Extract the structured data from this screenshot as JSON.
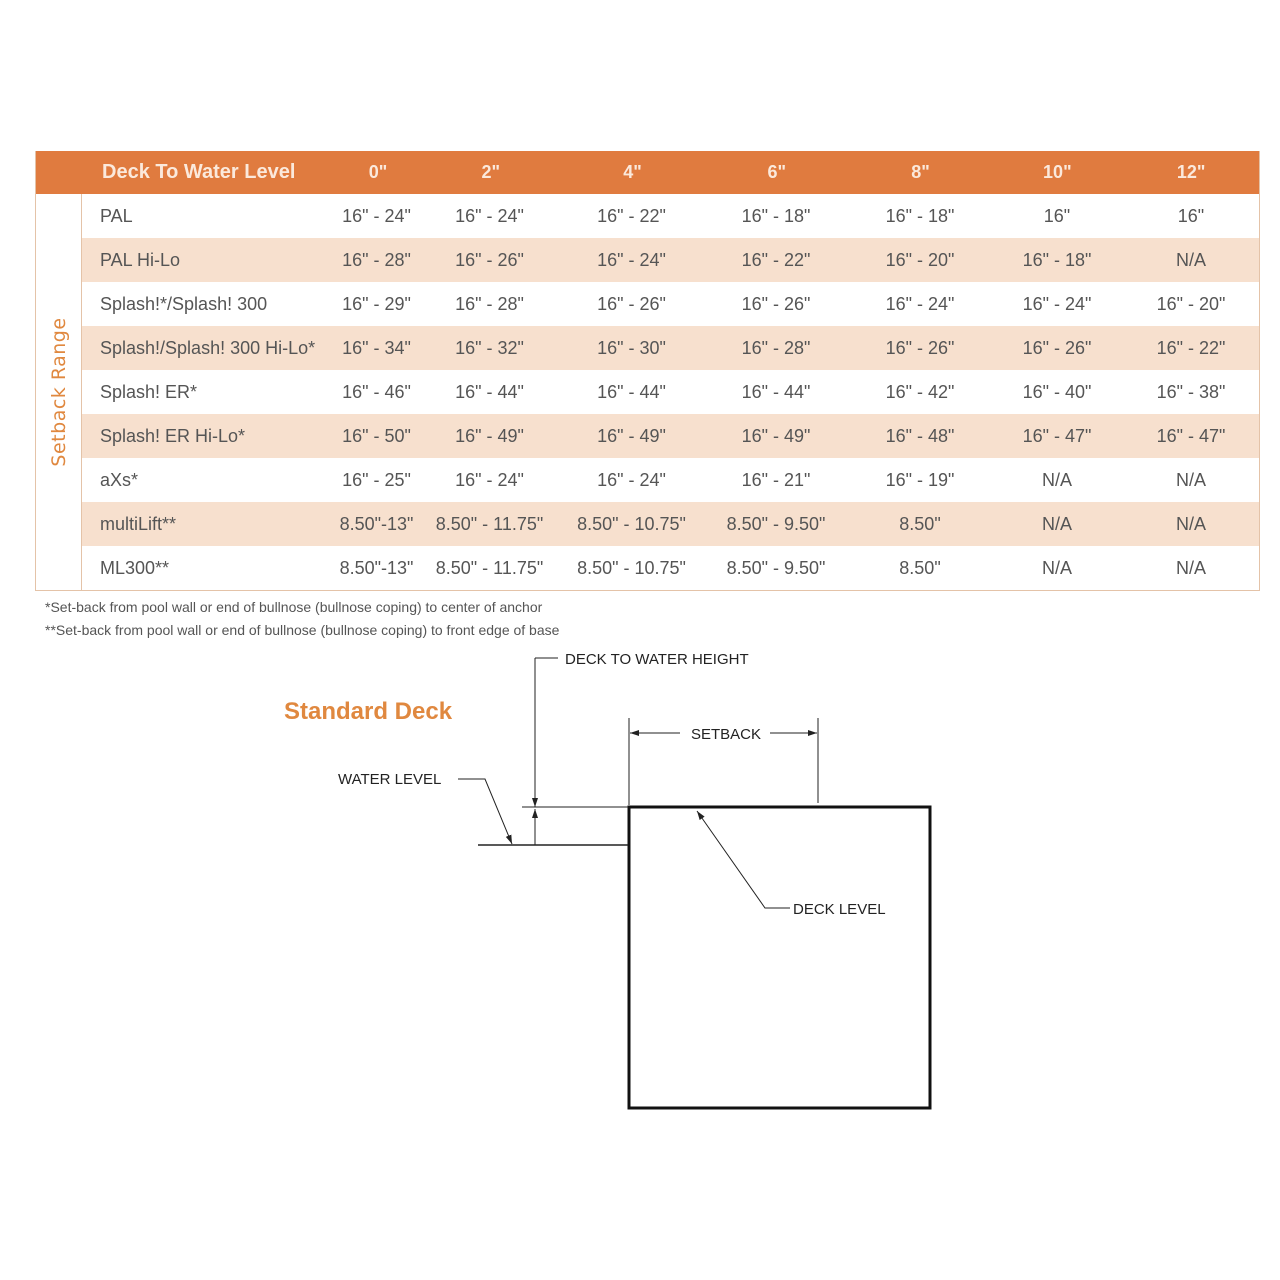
{
  "table": {
    "header_label": "Deck To Water Level",
    "side_label": "Setback Range",
    "columns": [
      "0\"",
      "2\"",
      "4\"",
      "6\"",
      "8\"",
      "10\"",
      "12\""
    ],
    "rows": [
      {
        "name": "PAL",
        "values": [
          "16\" - 24\"",
          "16\" - 24\"",
          "16\" - 22\"",
          "16\" - 18\"",
          "16\" - 18\"",
          "16\"",
          "16\""
        ]
      },
      {
        "name": "PAL Hi-Lo",
        "values": [
          "16\" - 28\"",
          "16\" - 26\"",
          "16\" - 24\"",
          "16\" - 22\"",
          "16\" - 20\"",
          "16\" - 18\"",
          "N/A"
        ]
      },
      {
        "name": "Splash!*/Splash! 300",
        "values": [
          "16\" - 29\"",
          "16\" - 28\"",
          "16\" - 26\"",
          "16\" - 26\"",
          "16\" - 24\"",
          "16\" - 24\"",
          "16\" - 20\""
        ]
      },
      {
        "name": "Splash!/Splash! 300 Hi-Lo*",
        "values": [
          "16\" - 34\"",
          "16\" - 32\"",
          "16\" - 30\"",
          "16\" - 28\"",
          "16\" - 26\"",
          "16\" - 26\"",
          "16\" - 22\""
        ]
      },
      {
        "name": "Splash! ER*",
        "values": [
          "16\" - 46\"",
          "16\" - 44\"",
          "16\" - 44\"",
          "16\" - 44\"",
          "16\" - 42\"",
          "16\" - 40\"",
          "16\" - 38\""
        ]
      },
      {
        "name": "Splash! ER Hi-Lo*",
        "values": [
          "16\" - 50\"",
          "16\" - 49\"",
          "16\" - 49\"",
          "16\" - 49\"",
          "16\" - 48\"",
          "16\" - 47\"",
          "16\" - 47\""
        ]
      },
      {
        "name": "aXs*",
        "values": [
          "16\" - 25\"",
          "16\" - 24\"",
          "16\" - 24\"",
          "16\" - 21\"",
          "16\" - 19\"",
          "N/A",
          "N/A"
        ]
      },
      {
        "name": "multiLift**",
        "values": [
          "8.50\"-13\"",
          "8.50\" - 11.75\"",
          "8.50\" - 10.75\"",
          "8.50\" - 9.50\"",
          "8.50\"",
          "N/A",
          "N/A"
        ]
      },
      {
        "name": "ML300**",
        "values": [
          "8.50\"-13\"",
          "8.50\" - 11.75\"",
          "8.50\" - 10.75\"",
          "8.50\" - 9.50\"",
          "8.50\"",
          "N/A",
          "N/A"
        ]
      }
    ]
  },
  "notes": [
    "*Set-back from pool wall or end of bullnose (bullnose coping) to center of anchor",
    "**Set-back from pool wall or end of bullnose (bullnose coping) to front edge of base"
  ],
  "diagram": {
    "title": "Standard Deck",
    "deck_to_water_height": "DECK TO WATER HEIGHT",
    "setback": "SETBACK",
    "water_level": "WATER LEVEL",
    "deck_level": "DECK LEVEL"
  },
  "colors": {
    "header": "#e07b3f",
    "alt_row": "#f7e0ce",
    "accent_text": "#e0883f"
  }
}
